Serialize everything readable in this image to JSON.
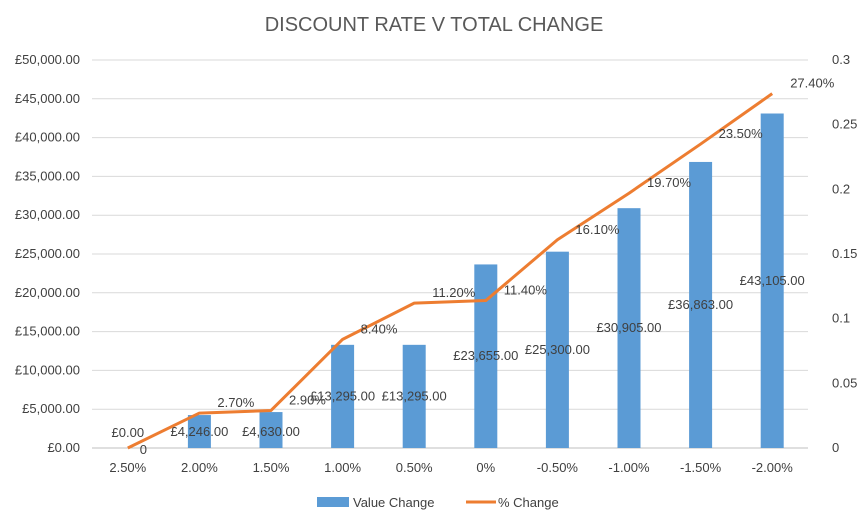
{
  "chart_data": {
    "type": "bar+line",
    "title": "DISCOUNT RATE V TOTAL CHANGE",
    "categories": [
      "2.50%",
      "2.00%",
      "1.50%",
      "1.00%",
      "0.50%",
      "0%",
      "-0.50%",
      "-1.00%",
      "-1.50%",
      "-2.00%"
    ],
    "series": [
      {
        "name": "Value Change",
        "kind": "bar",
        "axis": "left",
        "color": "#5b9bd5",
        "values": [
          0,
          4246,
          4630,
          13295,
          13295,
          23655,
          25300,
          30905,
          36863,
          43105
        ],
        "labels": [
          "£0.00",
          "£4,246.00",
          "£4,630.00",
          "£13,295.00",
          "£13,295.00",
          "£23,655.00",
          "£25,300.00",
          "£30,905.00",
          "£36,863.00",
          "£43,105.00"
        ]
      },
      {
        "name": "% Change",
        "kind": "line",
        "axis": "right",
        "color": "#ed7d31",
        "values": [
          0,
          0.027,
          0.029,
          0.084,
          0.112,
          0.114,
          0.161,
          0.197,
          0.235,
          0.274
        ],
        "labels": [
          "0",
          "2.70%",
          "2.90%",
          "8.40%",
          "11.20%",
          "11.40%",
          "16.10%",
          "19.70%",
          "23.50%",
          "27.40%"
        ]
      }
    ],
    "y_left": {
      "min": 0,
      "max": 50000,
      "ticks": [
        "£0.00",
        "£5,000.00",
        "£10,000.00",
        "£15,000.00",
        "£20,000.00",
        "£25,000.00",
        "£30,000.00",
        "£35,000.00",
        "£40,000.00",
        "£45,000.00",
        "£50,000.00"
      ]
    },
    "y_right": {
      "min": 0,
      "max": 0.3,
      "ticks": [
        "0",
        "0.05",
        "0.1",
        "0.15",
        "0.2",
        "0.25",
        "0.3"
      ]
    },
    "grid": true,
    "legend_position": "bottom"
  }
}
